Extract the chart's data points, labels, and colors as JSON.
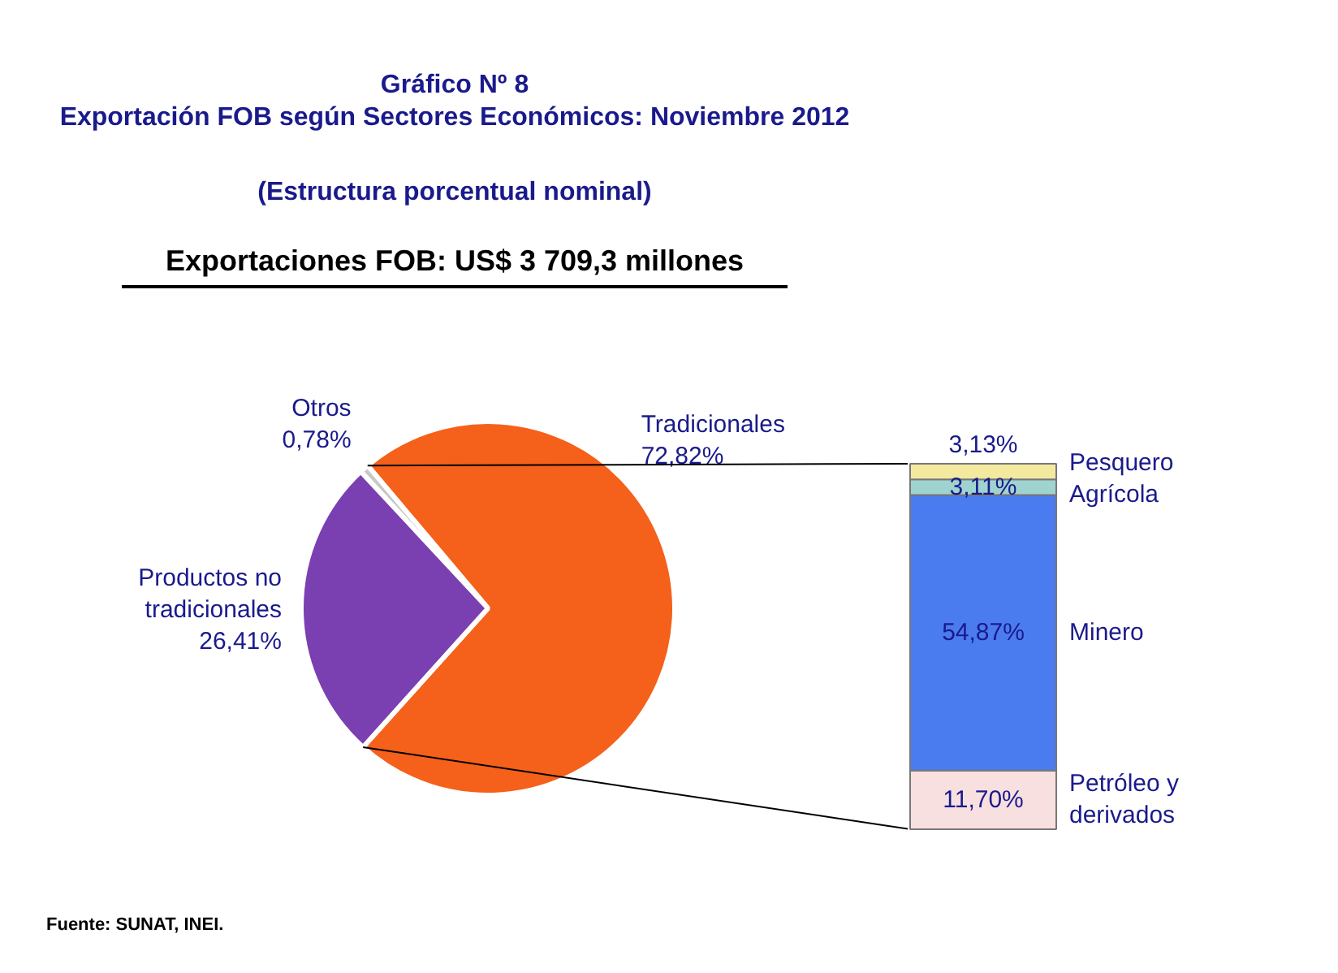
{
  "chart_data": [
    {
      "type": "pie",
      "title": "Gráfico Nº 8\nExportación FOB según Sectores Económicos: Noviembre 2012",
      "subtitle": "(Estructura porcentual nominal)",
      "categories": [
        "Tradicionales",
        "Otros",
        "Productos no tradicionales"
      ],
      "values": [
        72.82,
        0.78,
        26.41
      ],
      "value_labels": [
        "72,82%",
        "0,78%",
        "26,41%"
      ],
      "colors": [
        "#f5601a",
        "#c8c8c8",
        "#7a3fb0"
      ],
      "annotations": [
        "Exportaciones FOB: US$ 3 709,3 millones",
        "Fuente: SUNAT, INEI."
      ]
    },
    {
      "type": "bar",
      "stacked": true,
      "categories": [
        null
      ],
      "series": [
        {
          "name": "Petróleo y derivados",
          "color": "#f8e0e0",
          "values": [
            11.7
          ],
          "value_labels": [
            "11,70%"
          ]
        },
        {
          "name": "Minero",
          "color": "#4a7cf0",
          "values": [
            54.87
          ],
          "value_labels": [
            "54,87%"
          ]
        },
        {
          "name": "Agrícola",
          "color": "#9fd3d0",
          "values": [
            3.11
          ],
          "value_labels": [
            "3,11%"
          ]
        },
        {
          "name": "Pesquero",
          "color": "#f3eaa0",
          "values": [
            3.13
          ],
          "value_labels": [
            "3,13%"
          ]
        }
      ]
    }
  ]
}
